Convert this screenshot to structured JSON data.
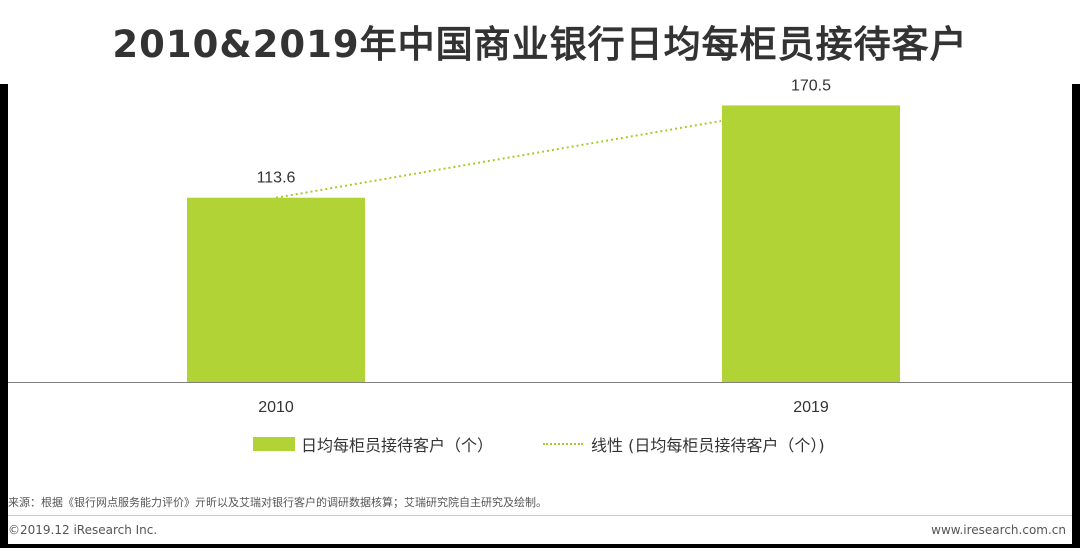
{
  "title": "2010&2019年中国商业银行日均每柜员接待客户",
  "colors": {
    "bar": "#b1d336",
    "trend": "#a6cc2c",
    "axis": "#7f7f7f"
  },
  "chart_data": {
    "type": "bar",
    "categories": [
      "2010",
      "2019"
    ],
    "series": [
      {
        "name": "日均每柜员接待客户（个）",
        "values": [
          113.6,
          170.5
        ]
      }
    ],
    "trendline": {
      "name": "线性 (日均每柜员接待客户（个）)",
      "type": "linear"
    },
    "ylim": [
      0,
      180
    ],
    "xlabel": "",
    "ylabel": "",
    "legend": "bottom"
  },
  "source_note": "来源：根据《银行网点服务能力评价》亓昕以及艾瑞对银行客户的调研数据核算；艾瑞研究院自主研究及绘制。",
  "footer": {
    "copyright": "©2019.12 iResearch Inc.",
    "website": "www.iresearch.com.cn"
  }
}
